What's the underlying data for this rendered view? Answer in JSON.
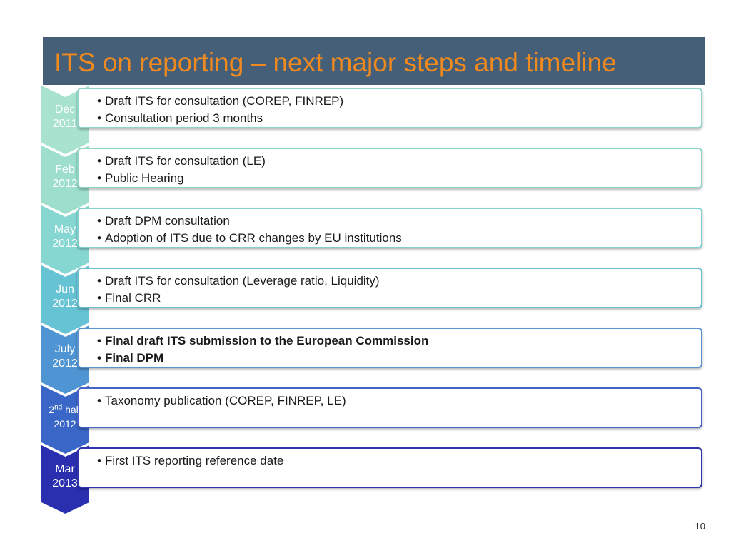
{
  "title": "ITS on reporting – next major steps and timeline",
  "page_number": "10",
  "steps": [
    {
      "label_line1": "Dec",
      "label_line2": "2011",
      "color": "#a9e3cf",
      "border": "#8fd5c8",
      "items": [
        "Draft ITS for consultation (COREP, FINREP)",
        "Consultation period 3 months"
      ],
      "bold": false
    },
    {
      "label_line1": "Feb",
      "label_line2": "2012",
      "color": "#9ddfcc",
      "border": "#8dd3c6",
      "items": [
        "Draft ITS for consultation (LE)",
        "Public Hearing"
      ],
      "bold": false
    },
    {
      "label_line1": "May",
      "label_line2": "2012",
      "color": "#86d6d2",
      "border": "#80cfcf",
      "items": [
        "Draft DPM consultation",
        "Adoption of ITS due to CRR changes by EU institutions"
      ],
      "bold": false
    },
    {
      "label_line1": "Jun",
      "label_line2": "2012",
      "color": "#66c3d3",
      "border": "#6bbfd2",
      "items": [
        "Draft ITS for consultation (Leverage ratio, Liquidity)",
        "Final CRR"
      ],
      "bold": false
    },
    {
      "label_line1": "July",
      "label_line2": "2012",
      "color": "#4f95d3",
      "border": "#5a93d0",
      "items": [
        "Final draft ITS submission to the European Commission",
        "Final DPM"
      ],
      "bold": true
    },
    {
      "label_pre": "2",
      "label_sup": "nd",
      "label_post": " half",
      "label_line2": "2012",
      "color": "#3a67c7",
      "border": "#4463c4",
      "items": [
        "Taxonomy publication (COREP, FINREP, LE)"
      ],
      "bold": false
    },
    {
      "label_line1": "Mar",
      "label_line2": "2013",
      "color": "#2a2fb0",
      "border": "#2f34ae",
      "items": [
        "First ITS reporting reference date"
      ],
      "bold": false
    }
  ]
}
